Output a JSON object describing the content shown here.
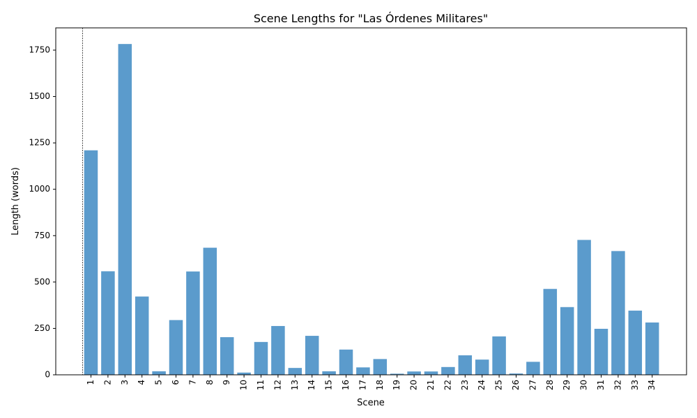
{
  "chart_data": {
    "type": "bar",
    "title": "Scene Lengths for \"Las Órdenes Militares\"",
    "xlabel": "Scene",
    "ylabel": "Length (words)",
    "categories": [
      "1",
      "2",
      "3",
      "4",
      "5",
      "6",
      "7",
      "8",
      "9",
      "10",
      "11",
      "12",
      "13",
      "14",
      "15",
      "16",
      "17",
      "18",
      "19",
      "20",
      "21",
      "22",
      "23",
      "24",
      "25",
      "26",
      "27",
      "28",
      "29",
      "30",
      "31",
      "32",
      "33",
      "34"
    ],
    "values": [
      1210,
      558,
      1783,
      422,
      19,
      295,
      557,
      685,
      203,
      12,
      177,
      263,
      37,
      210,
      19,
      136,
      40,
      85,
      6,
      18,
      18,
      42,
      105,
      82,
      207,
      7,
      70,
      463,
      365,
      727,
      248,
      667,
      346,
      282
    ],
    "ylim": [
      0,
      1870
    ],
    "yticks": [
      0,
      250,
      500,
      750,
      1000,
      1250,
      1500,
      1750
    ],
    "bar_color": "#5b9bcc",
    "grid": false,
    "vertical_marker": {
      "at": "before scene 1",
      "style": "dashed",
      "color": "#000000"
    }
  }
}
